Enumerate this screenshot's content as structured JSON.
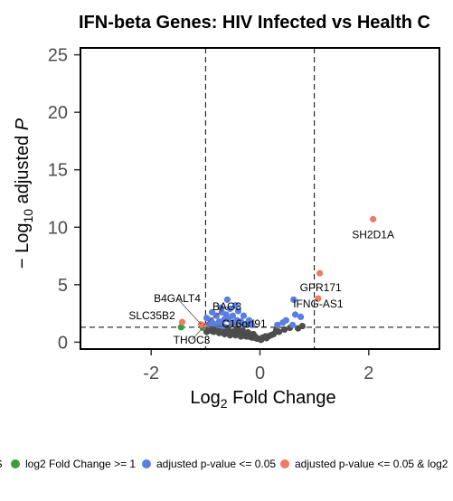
{
  "chart_data": {
    "type": "scatter",
    "title": "IFN-beta Genes: HIV Infected vs Health C",
    "xlabel_main": "Log",
    "xlabel_sub": "2",
    "xlabel_rest": " Fold Change",
    "ylabel_prefix": "− Log",
    "ylabel_sub": "10",
    "ylabel_mid": " adjusted ",
    "ylabel_italic": "P",
    "xlim": [
      -3.3,
      3.3
    ],
    "ylim": [
      -0.6,
      25.6
    ],
    "x_ticks": [
      -2,
      0,
      2
    ],
    "x_tick_labels": [
      "-2",
      "0",
      "2"
    ],
    "y_ticks": [
      0,
      5,
      10,
      15,
      20,
      25
    ],
    "y_tick_labels": [
      "0",
      "5",
      "10",
      "15",
      "20",
      "25"
    ],
    "fc_cutoffs": [
      -1,
      1
    ],
    "p_cutoff_line": 1.3,
    "colors": {
      "ns": "#4d4d4d",
      "fc": "#3a9e3a",
      "p": "#5b7fe0",
      "both": "#ee7b63"
    },
    "legend": [
      {
        "key": "ns",
        "label": "NS"
      },
      {
        "key": "fc",
        "label": "log2 Fold Change >= 1"
      },
      {
        "key": "p",
        "label": "adjusted p-value <= 0.05"
      },
      {
        "key": "both",
        "label": "adjusted p-value <= 0.05 & log2"
      }
    ],
    "series": [
      {
        "key": "ns",
        "points": [
          [
            -0.95,
            1.2
          ],
          [
            -0.9,
            1.0
          ],
          [
            -0.85,
            0.9
          ],
          [
            -0.8,
            1.1
          ],
          [
            -0.75,
            0.8
          ],
          [
            -0.7,
            1.0
          ],
          [
            -0.65,
            0.7
          ],
          [
            -0.6,
            0.9
          ],
          [
            -0.55,
            0.6
          ],
          [
            -0.5,
            0.8
          ],
          [
            -0.45,
            0.6
          ],
          [
            -0.4,
            0.7
          ],
          [
            -0.35,
            0.5
          ],
          [
            -0.3,
            0.6
          ],
          [
            -0.25,
            0.5
          ],
          [
            -0.2,
            0.5
          ],
          [
            -0.15,
            0.4
          ],
          [
            -0.1,
            0.4
          ],
          [
            -0.05,
            0.3
          ],
          [
            0.0,
            0.3
          ],
          [
            0.05,
            0.4
          ],
          [
            0.1,
            0.5
          ],
          [
            0.15,
            0.5
          ],
          [
            0.2,
            0.6
          ],
          [
            0.25,
            0.7
          ],
          [
            -0.98,
            0.9
          ],
          [
            -0.88,
            1.25
          ],
          [
            -0.78,
            0.95
          ],
          [
            -0.68,
            0.85
          ],
          [
            -0.58,
            1.1
          ],
          [
            -0.48,
            0.95
          ],
          [
            -0.38,
            0.9
          ],
          [
            -0.28,
            0.75
          ],
          [
            -0.18,
            0.65
          ],
          [
            -0.08,
            0.45
          ],
          [
            0.02,
            0.2
          ],
          [
            0.12,
            0.35
          ],
          [
            -0.62,
            1.25
          ],
          [
            -0.42,
            1.2
          ],
          [
            -0.32,
            1.05
          ],
          [
            0.7,
            1.2
          ],
          [
            0.78,
            1.4
          ],
          [
            0.45,
            1.1
          ],
          [
            0.35,
            0.9
          ],
          [
            -0.22,
            0.85
          ],
          [
            -0.12,
            0.7
          ],
          [
            0.3,
            1.05
          ],
          [
            0.55,
            1.25
          ]
        ]
      },
      {
        "key": "fc",
        "points": [
          [
            -1.45,
            1.3
          ],
          [
            -1.05,
            1.25
          ]
        ]
      },
      {
        "key": "p",
        "points": [
          [
            -0.95,
            1.5
          ],
          [
            -0.9,
            1.9
          ],
          [
            -0.85,
            1.6
          ],
          [
            -0.8,
            2.3
          ],
          [
            -0.75,
            1.8
          ],
          [
            -0.7,
            2.6
          ],
          [
            -0.65,
            2.0
          ],
          [
            -0.6,
            3.7
          ],
          [
            -0.55,
            2.9
          ],
          [
            -0.5,
            2.3
          ],
          [
            -0.45,
            3.2
          ],
          [
            -0.4,
            2.7
          ],
          [
            -0.35,
            1.8
          ],
          [
            -0.3,
            2.3
          ],
          [
            -0.25,
            1.6
          ],
          [
            -0.2,
            1.9
          ],
          [
            -0.15,
            1.5
          ],
          [
            -0.98,
            2.1
          ],
          [
            -0.88,
            2.6
          ],
          [
            -0.72,
            3.0
          ],
          [
            -0.62,
            2.4
          ],
          [
            -0.52,
            1.6
          ],
          [
            -0.42,
            1.9
          ],
          [
            -0.32,
            1.5
          ],
          [
            -0.78,
            1.5
          ],
          [
            -0.68,
            1.4
          ],
          [
            -0.58,
            2.0
          ],
          [
            -0.48,
            1.7
          ],
          [
            0.62,
            3.7
          ],
          [
            0.65,
            2.4
          ],
          [
            0.75,
            2.2
          ],
          [
            0.48,
            1.9
          ],
          [
            0.6,
            1.5
          ],
          [
            0.42,
            1.7
          ],
          [
            0.32,
            1.5
          ]
        ]
      },
      {
        "key": "both",
        "points": [
          [
            2.08,
            10.7
          ],
          [
            1.1,
            6.0
          ],
          [
            1.07,
            3.8
          ],
          [
            -1.43,
            1.75
          ],
          [
            -1.08,
            1.55
          ],
          [
            -1.04,
            1.45
          ]
        ]
      }
    ],
    "annotations": [
      {
        "label": "SH2D1A",
        "x": 2.08,
        "y": 10.7
      },
      {
        "label": "GPR171",
        "x": 1.1,
        "y": 6.0
      },
      {
        "label": "IFNG-AS1",
        "x": 1.07,
        "y": 3.8
      },
      {
        "label": "B4GALT4",
        "x": -1.08,
        "y": 1.55
      },
      {
        "label": "BAG3",
        "x": -1.04,
        "y": 1.45
      },
      {
        "label": "SLC35B2",
        "x": -1.43,
        "y": 1.75
      },
      {
        "label": "C16orf91",
        "x": -1.05,
        "y": 1.25
      },
      {
        "label": "THOC3",
        "x": -1.05,
        "y": 1.25
      }
    ]
  }
}
